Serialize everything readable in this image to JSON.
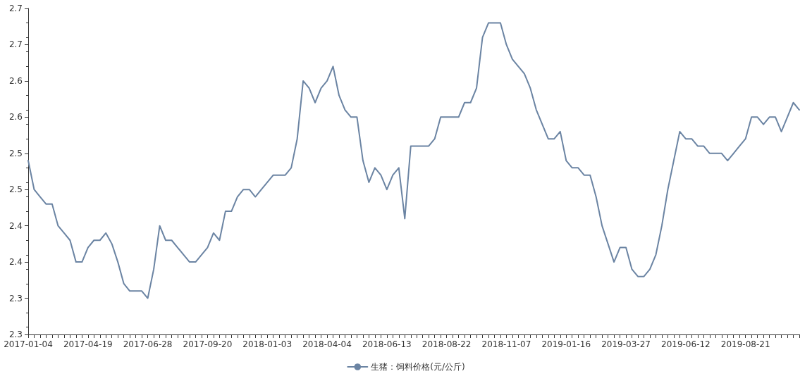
{
  "chart_data": {
    "type": "line",
    "categories": [
      "2017-01-04",
      null,
      null,
      null,
      null,
      null,
      null,
      null,
      null,
      null,
      "2017-04-19",
      null,
      null,
      null,
      null,
      null,
      null,
      null,
      null,
      null,
      "2017-06-28",
      null,
      null,
      null,
      null,
      null,
      null,
      null,
      null,
      null,
      "2017-09-20",
      null,
      null,
      null,
      null,
      null,
      null,
      null,
      null,
      null,
      "2018-01-03",
      null,
      null,
      null,
      null,
      null,
      null,
      null,
      null,
      null,
      "2018-04-04",
      null,
      null,
      null,
      null,
      null,
      null,
      null,
      null,
      null,
      "2018-06-13",
      null,
      null,
      null,
      null,
      null,
      null,
      null,
      null,
      null,
      "2018-08-22",
      null,
      null,
      null,
      null,
      null,
      null,
      null,
      null,
      null,
      "2018-11-07",
      null,
      null,
      null,
      null,
      null,
      null,
      null,
      null,
      null,
      "2019-01-16",
      null,
      null,
      null,
      null,
      null,
      null,
      null,
      null,
      null,
      "2019-03-27",
      null,
      null,
      null,
      null,
      null,
      null,
      null,
      null,
      null,
      "2019-06-12",
      null,
      null,
      null,
      null,
      null,
      null,
      null,
      null,
      null,
      "2019-08-21",
      null,
      null,
      null,
      null,
      null,
      null,
      null,
      null,
      null
    ],
    "series": [
      {
        "name": "生猪：饲料价格(元/公斤)",
        "color": "#6b84a3",
        "values": [
          2.49,
          2.45,
          2.44,
          2.43,
          2.43,
          2.4,
          2.39,
          2.38,
          2.35,
          2.35,
          2.37,
          2.38,
          2.38,
          2.39,
          2.375,
          2.35,
          2.32,
          2.31,
          2.31,
          2.31,
          2.3,
          2.34,
          2.4,
          2.38,
          2.38,
          2.37,
          2.36,
          2.35,
          2.35,
          2.36,
          2.37,
          2.39,
          2.38,
          2.42,
          2.42,
          2.44,
          2.45,
          2.45,
          2.44,
          2.45,
          2.46,
          2.47,
          2.47,
          2.47,
          2.48,
          2.52,
          2.6,
          2.59,
          2.57,
          2.59,
          2.6,
          2.62,
          2.58,
          2.56,
          2.55,
          2.55,
          2.49,
          2.46,
          2.48,
          2.47,
          2.45,
          2.47,
          2.48,
          2.41,
          2.51,
          2.51,
          2.51,
          2.51,
          2.52,
          2.55,
          2.55,
          2.55,
          2.55,
          2.57,
          2.57,
          2.59,
          2.66,
          2.68,
          2.68,
          2.68,
          2.65,
          2.63,
          2.62,
          2.61,
          2.59,
          2.56,
          2.54,
          2.52,
          2.52,
          2.53,
          2.49,
          2.48,
          2.48,
          2.47,
          2.47,
          2.44,
          2.4,
          2.375,
          2.35,
          2.37,
          2.37,
          2.34,
          2.33,
          2.33,
          2.34,
          2.36,
          2.4,
          2.45,
          2.49,
          2.53,
          2.52,
          2.52,
          2.51,
          2.51,
          2.5,
          2.5,
          2.5,
          2.49,
          2.5,
          2.51,
          2.52,
          2.55,
          2.55,
          2.54,
          2.55,
          2.55,
          2.53,
          2.55,
          2.57,
          2.56
        ]
      }
    ],
    "ylim": [
      2.25,
      2.7
    ],
    "yticks": [
      {
        "value": 2.25,
        "label": "2.3"
      },
      {
        "value": 2.3,
        "label": "2.3"
      },
      {
        "value": 2.35,
        "label": "2.4"
      },
      {
        "value": 2.4,
        "label": "2.4"
      },
      {
        "value": 2.45,
        "label": "2.5"
      },
      {
        "value": 2.5,
        "label": "2.5"
      },
      {
        "value": 2.55,
        "label": "2.6"
      },
      {
        "value": 2.6,
        "label": "2.6"
      },
      {
        "value": 2.65,
        "label": "2.7"
      },
      {
        "value": 2.7,
        "label": "2.7"
      }
    ],
    "grid": false,
    "legend": "bottom",
    "marker": "none",
    "line_style": "solid"
  }
}
